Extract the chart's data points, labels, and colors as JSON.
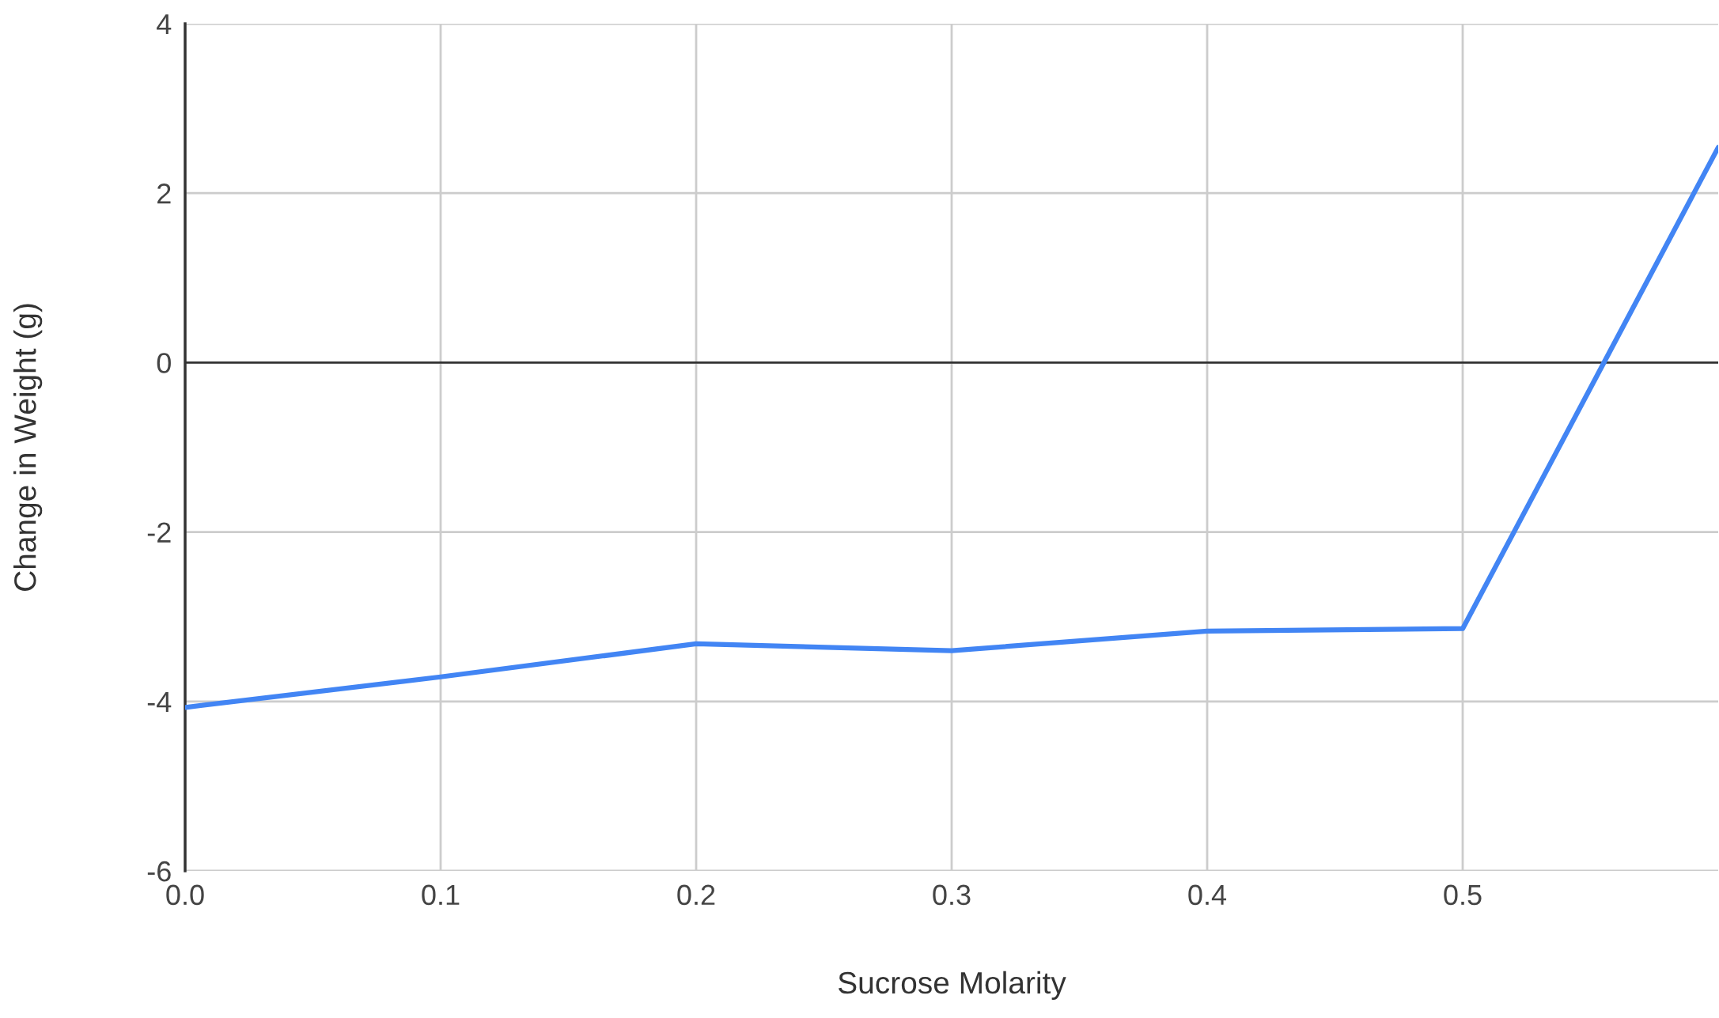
{
  "chart_data": {
    "type": "line",
    "xlabel": "Sucrose Molarity",
    "ylabel": "Change in Weight (g)",
    "x": [
      0.0,
      0.1,
      0.2,
      0.3,
      0.4,
      0.5,
      0.6
    ],
    "series": [
      {
        "color": "#4285f4",
        "values": [
          -4.07,
          -3.71,
          -3.32,
          -3.4,
          -3.17,
          -3.14,
          2.54
        ]
      }
    ],
    "xlim": [
      0,
      0.6
    ],
    "xticks": [
      {
        "value": 0,
        "label": "0.0"
      },
      {
        "value": 0.1,
        "label": "0.1"
      },
      {
        "value": 0.2,
        "label": "0.2"
      },
      {
        "value": 0.3,
        "label": "0.3"
      },
      {
        "value": 0.4,
        "label": "0.4"
      },
      {
        "value": 0.5,
        "label": "0.5"
      }
    ],
    "ylim": [
      -6,
      4
    ],
    "yticks": [
      {
        "value": -6,
        "label": "-6"
      },
      {
        "value": -4,
        "label": "-4"
      },
      {
        "value": -2,
        "label": "-2"
      },
      0,
      2,
      4
    ],
    "ref_lines": [
      {
        "axis": "y",
        "value": 0,
        "color": "#333333"
      }
    ],
    "grid": true,
    "marker": "none",
    "line_style": "solid"
  }
}
